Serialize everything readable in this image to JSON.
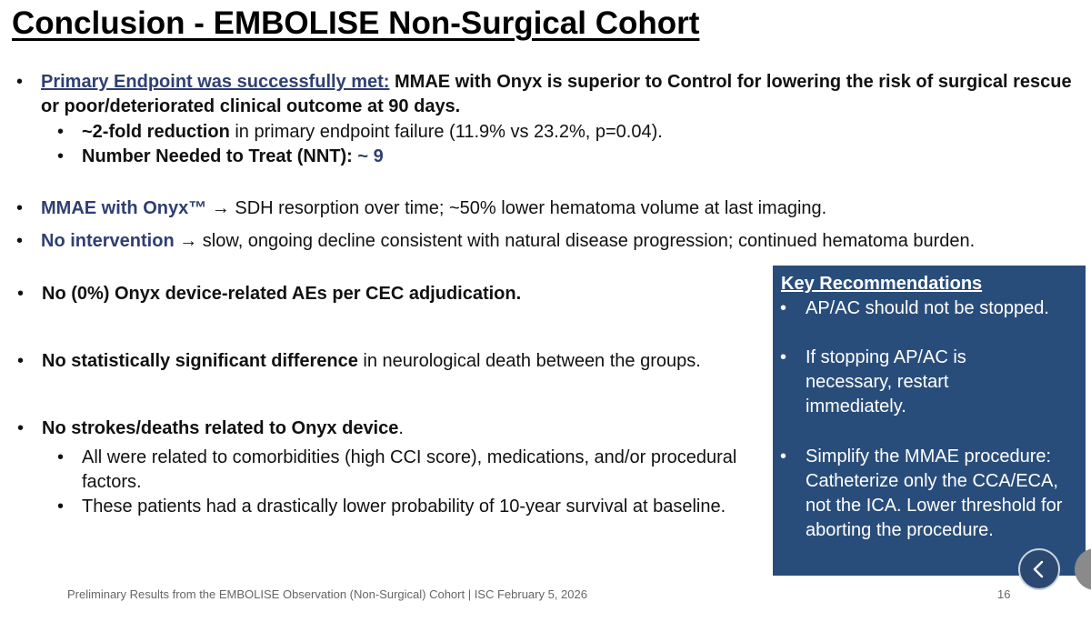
{
  "title": "Conclusion - EMBOLISE Non-Surgical Cohort",
  "bullet_char": "•",
  "arrow_char": "→",
  "primary": {
    "lead": "Primary Endpoint was successfully met:",
    "text": " MMAE with Onyx is superior to Control for lowering the risk of surgical rescue or poor/deteriorated clinical outcome at 90 days.",
    "sub": [
      {
        "bold": "~2-fold reduction",
        "text": " in primary endpoint failure (11.9% vs 23.2%, p=0.04)."
      },
      {
        "bold": "Number Needed to Treat (NNT):",
        "value": " ~ 9"
      }
    ]
  },
  "mmae": {
    "lead": "MMAE with Onyx™",
    "text": " SDH resorption over time; ~50% lower hematoma volume at last imaging."
  },
  "nointervention": {
    "lead": "No intervention",
    "text": " slow, ongoing decline consistent with natural disease progression; continued hematoma burden."
  },
  "ae": {
    "text": "No (0%) Onyx device-related AEs per CEC adjudication."
  },
  "neuro": {
    "bold": "No statistically significant difference",
    "text": " in neurological death between the groups."
  },
  "strokes": {
    "bold": "No strokes/deaths related to Onyx device",
    "text": ".",
    "sub": [
      "All were related to comorbidities (high CCI score), medications, and/or procedural factors.",
      "These patients had a drastically lower probability of 10-year survival at baseline."
    ]
  },
  "key_recommendations": {
    "title": "Key Recommendations",
    "items": [
      "AP/AC should not be stopped.",
      "If stopping AP/AC is necessary, restart immediately.",
      "Simplify the MMAE procedure: Catheterize only the CCA/ECA, not the ICA. Lower threshold for aborting the procedure."
    ]
  },
  "footer": {
    "text": "Preliminary Results from the EMBOLISE Observation (Non-Surgical) Cohort |  ISC February 5, 2026",
    "page": "16"
  },
  "colors": {
    "accent": "#2f3f73",
    "box": "#294d7a"
  },
  "icons": {
    "nav_back": "chevron-left-icon"
  }
}
